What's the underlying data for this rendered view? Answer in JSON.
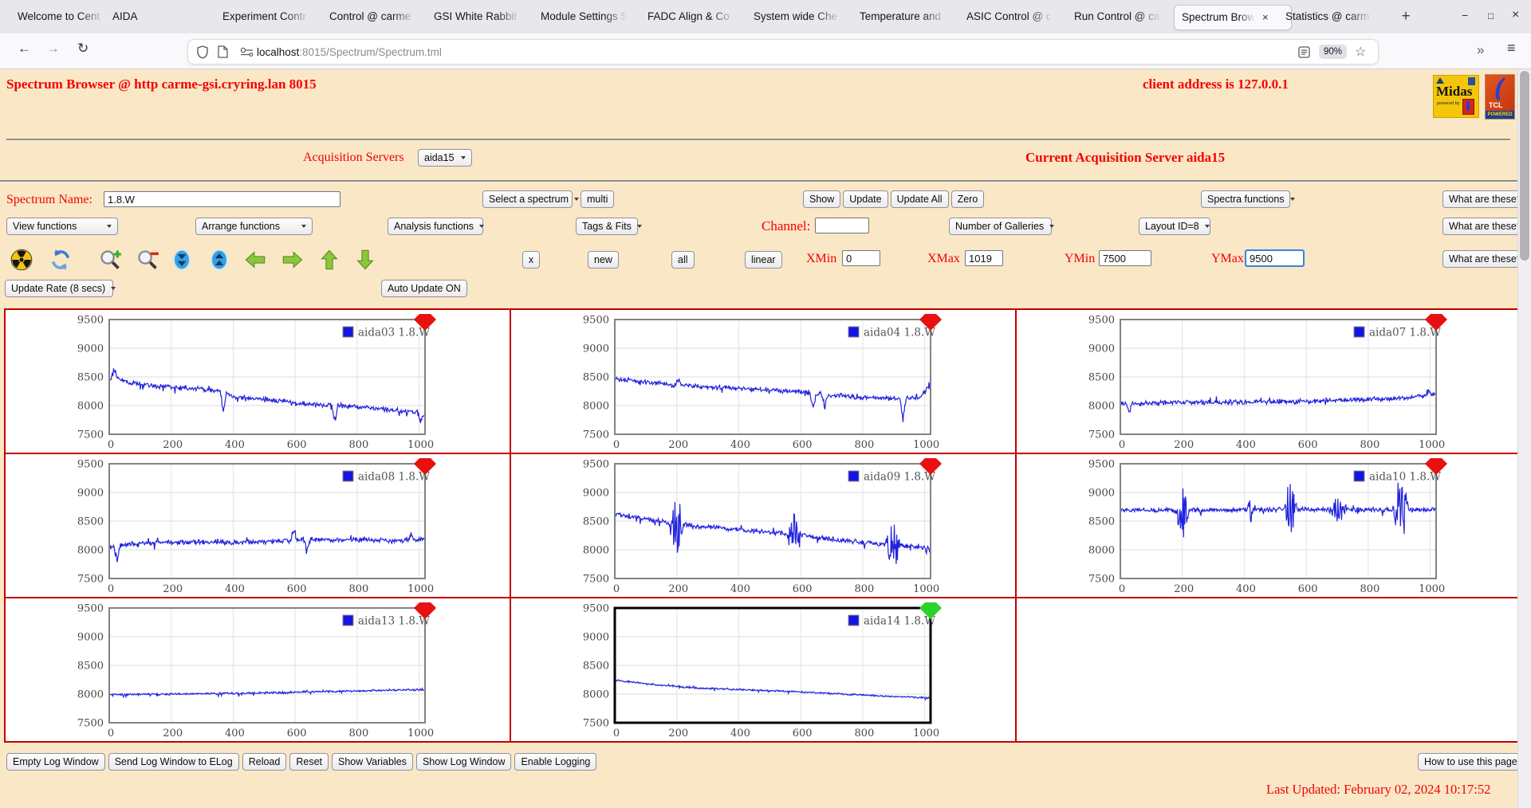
{
  "browser": {
    "tabs": [
      {
        "label": "Welcome to Cent",
        "active": false
      },
      {
        "label": "AIDA",
        "active": false
      },
      {
        "label": "Experiment Contr",
        "active": false
      },
      {
        "label": "Control @ carme",
        "active": false
      },
      {
        "label": "GSI White Rabbit",
        "active": false
      },
      {
        "label": "Module Settings S",
        "active": false
      },
      {
        "label": "FADC Align & Co",
        "active": false
      },
      {
        "label": "System wide Che",
        "active": false
      },
      {
        "label": "Temperature and",
        "active": false
      },
      {
        "label": "ASIC Control @ c",
        "active": false
      },
      {
        "label": "Run Control @ ca",
        "active": false
      },
      {
        "label": "Spectrum Brow",
        "active": true
      },
      {
        "label": "Statistics @ carm",
        "active": false
      }
    ],
    "new_tab": "+",
    "window_controls": {
      "minimize": "−",
      "maximize": "□",
      "close": "×"
    },
    "back": "←",
    "forward": "→",
    "reload": "↻",
    "url": {
      "host": "localhost",
      "path": ":8015/Spectrum/Spectrum.tml"
    },
    "zoom_badge": "90%",
    "star": "☆",
    "overflow": "»",
    "menu": "≡"
  },
  "header": {
    "title": "Spectrum Browser @ http carme-gsi.cryring.lan 8015",
    "client": "client address is 127.0.0.1",
    "midas_logo_text": "Midas",
    "midas_powered": "powered by",
    "tcl_logo_text": "TCL",
    "tcl_powered": "POWERED"
  },
  "acquisition": {
    "label": "Acquisition Servers",
    "selected": "aida15",
    "current": "Current Acquisition Server aida15"
  },
  "spectrum_row": {
    "name_label": "Spectrum Name:",
    "name_value": "1.8.W",
    "select_spectrum": "Select a spectrum",
    "multi": "multi",
    "show": "Show",
    "update": "Update",
    "update_all": "Update All",
    "zero": "Zero",
    "spectra_functions": "Spectra functions",
    "what": "What are these?"
  },
  "functions_row": {
    "view": "View functions",
    "arrange": "Arrange functions",
    "analysis": "Analysis functions",
    "tags": "Tags & Fits",
    "channel_label": "Channel:",
    "channel_value": "",
    "galleries": "Number of Galleries",
    "layout": "Layout ID=8",
    "what": "What are these?"
  },
  "range_row": {
    "toolbar_icons": [
      "radiation-icon",
      "refresh-icon",
      "zoom-in-icon",
      "zoom-out-icon",
      "compress-icon",
      "expand-icon",
      "arrow-left-icon",
      "arrow-right-icon",
      "arrow-up-icon",
      "arrow-down-icon"
    ],
    "close_x": "x",
    "new": "new",
    "all": "all",
    "linear": "linear",
    "xmin_label": "XMin",
    "xmin": "0",
    "xmax_label": "XMax",
    "xmax": "1019",
    "ymin_label": "YMin",
    "ymin": "7500",
    "ymax_label": "YMax",
    "ymax": "9500",
    "what": "What are these?"
  },
  "update_row": {
    "rate": "Update Rate (8 secs)",
    "auto": "Auto Update ON"
  },
  "footer": {
    "buttons": [
      "Empty Log Window",
      "Send Log Window to ELog",
      "Reload",
      "Reset",
      "Show Variables",
      "Show Log Window",
      "Enable Logging"
    ],
    "help": "How to use this page",
    "last_updated": "Last Updated: February 02, 2024 10:17:52"
  },
  "chart_data": {
    "type": "line",
    "x_range": [
      0,
      1019
    ],
    "y_range": [
      7500,
      9500
    ],
    "x_ticks": [
      0,
      200,
      400,
      600,
      800,
      1000
    ],
    "y_ticks": [
      7500,
      8000,
      8500,
      9000,
      9500
    ],
    "line_color": "#2222dd",
    "grid": true,
    "legend_position": "top-right",
    "layout": {
      "columns": 3,
      "rows": 3
    },
    "series": [
      {
        "name": "aida03",
        "legend": "aida03 1.8.W",
        "marker_color": "#e81010",
        "selected": false,
        "seed": 101,
        "noise": 52,
        "trend": [
          [
            0,
            8420
          ],
          [
            20,
            8480
          ],
          [
            60,
            8400
          ],
          [
            120,
            8360
          ],
          [
            200,
            8320
          ],
          [
            300,
            8290
          ],
          [
            370,
            8230
          ],
          [
            400,
            8150
          ],
          [
            500,
            8110
          ],
          [
            600,
            8050
          ],
          [
            700,
            8010
          ],
          [
            800,
            7980
          ],
          [
            900,
            7930
          ],
          [
            1000,
            7880
          ],
          [
            1019,
            7820
          ]
        ],
        "spikes": [
          [
            15,
            260
          ],
          [
            368,
            -360
          ],
          [
            728,
            -400
          ],
          [
            1005,
            -170
          ]
        ],
        "bursts": []
      },
      {
        "name": "aida04",
        "legend": "aida04 1.8.W",
        "marker_color": "#e81010",
        "selected": false,
        "seed": 102,
        "noise": 50,
        "trend": [
          [
            0,
            8470
          ],
          [
            80,
            8420
          ],
          [
            180,
            8360
          ],
          [
            300,
            8320
          ],
          [
            450,
            8290
          ],
          [
            600,
            8240
          ],
          [
            700,
            8180
          ],
          [
            800,
            8140
          ],
          [
            900,
            8120
          ],
          [
            980,
            8140
          ],
          [
            1019,
            8300
          ]
        ],
        "spikes": [
          [
            205,
            180
          ],
          [
            640,
            -380
          ],
          [
            678,
            -260
          ],
          [
            930,
            -430
          ],
          [
            1012,
            120
          ]
        ],
        "bursts": []
      },
      {
        "name": "aida07",
        "legend": "aida07 1.8.W",
        "marker_color": "#e81010",
        "selected": false,
        "seed": 103,
        "noise": 50,
        "trend": [
          [
            0,
            8030
          ],
          [
            150,
            8050
          ],
          [
            350,
            8060
          ],
          [
            550,
            8070
          ],
          [
            750,
            8100
          ],
          [
            900,
            8120
          ],
          [
            1000,
            8180
          ],
          [
            1019,
            8210
          ]
        ],
        "spikes": [
          [
            28,
            -200
          ],
          [
            995,
            150
          ]
        ],
        "bursts": []
      },
      {
        "name": "aida08",
        "legend": "aida08 1.8.W",
        "marker_color": "#e81010",
        "selected": false,
        "seed": 104,
        "noise": 52,
        "trend": [
          [
            0,
            8050
          ],
          [
            120,
            8120
          ],
          [
            250,
            8140
          ],
          [
            400,
            8130
          ],
          [
            550,
            8150
          ],
          [
            650,
            8180
          ],
          [
            800,
            8170
          ],
          [
            950,
            8160
          ],
          [
            1019,
            8170
          ]
        ],
        "spikes": [
          [
            25,
            -300
          ],
          [
            595,
            240
          ],
          [
            640,
            -200
          ],
          [
            975,
            140
          ]
        ],
        "bursts": []
      },
      {
        "name": "aida09",
        "legend": "aida09 1.8.W",
        "marker_color": "#e81010",
        "selected": false,
        "seed": 105,
        "noise": 52,
        "trend": [
          [
            0,
            8630
          ],
          [
            120,
            8520
          ],
          [
            250,
            8420
          ],
          [
            400,
            8350
          ],
          [
            550,
            8290
          ],
          [
            700,
            8180
          ],
          [
            850,
            8100
          ],
          [
            1019,
            8040
          ]
        ],
        "spikes": [],
        "bursts": [
          [
            200,
            26,
            520
          ],
          [
            580,
            26,
            440
          ],
          [
            898,
            24,
            410
          ]
        ]
      },
      {
        "name": "aida10",
        "legend": "aida10 1.8.W",
        "marker_color": "#e81010",
        "selected": false,
        "seed": 106,
        "noise": 52,
        "trend": [
          [
            0,
            8690
          ],
          [
            500,
            8700
          ],
          [
            1019,
            8700
          ]
        ],
        "spikes": [],
        "bursts": [
          [
            200,
            24,
            560
          ],
          [
            420,
            10,
            230
          ],
          [
            548,
            24,
            470
          ],
          [
            700,
            34,
            210
          ],
          [
            905,
            26,
            530
          ]
        ]
      },
      {
        "name": "aida13",
        "legend": "aida13 1.8.W",
        "marker_color": "#e81010",
        "selected": false,
        "seed": 107,
        "noise": 22,
        "trend": [
          [
            0,
            7990
          ],
          [
            250,
            8000
          ],
          [
            500,
            8020
          ],
          [
            750,
            8050
          ],
          [
            1019,
            8080
          ]
        ],
        "spikes": [],
        "bursts": []
      },
      {
        "name": "aida14",
        "legend": "aida14 1.8.W",
        "marker_color": "#2ad22a",
        "selected": true,
        "seed": 108,
        "noise": 18,
        "trend": [
          [
            0,
            8240
          ],
          [
            120,
            8170
          ],
          [
            250,
            8110
          ],
          [
            400,
            8080
          ],
          [
            550,
            8050
          ],
          [
            700,
            8010
          ],
          [
            850,
            7970
          ],
          [
            1019,
            7930
          ]
        ],
        "spikes": [],
        "bursts": []
      }
    ]
  }
}
